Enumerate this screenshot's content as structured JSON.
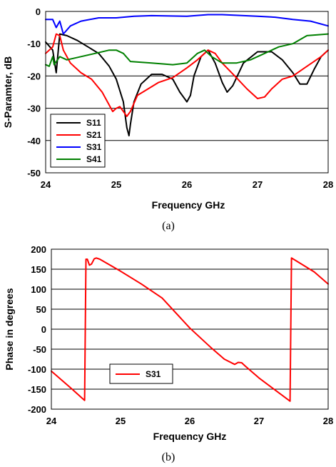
{
  "chart_data": [
    {
      "type": "line",
      "caption": "(a)",
      "xlabel": "Frequency GHz",
      "ylabel": "S-Paramter, dB",
      "xlim": [
        24,
        28
      ],
      "ylim": [
        -50,
        0
      ],
      "xticks": [
        24,
        25,
        26,
        27,
        28
      ],
      "yticks": [
        0,
        -10,
        -20,
        -30,
        -40,
        -50
      ],
      "grid": "horizontal",
      "legend_position": "bottom-left",
      "series": [
        {
          "name": "S11",
          "color": "#000000",
          "x": [
            24.0,
            24.1,
            24.15,
            24.2,
            24.3,
            24.45,
            24.6,
            24.75,
            24.9,
            25.0,
            25.1,
            25.15,
            25.18,
            25.2,
            25.25,
            25.35,
            25.5,
            25.65,
            25.8,
            25.9,
            26.0,
            26.05,
            26.1,
            26.2,
            26.3,
            26.4,
            26.5,
            26.57,
            26.65,
            26.8,
            27.0,
            27.2,
            27.35,
            27.5,
            27.6,
            27.7,
            27.8,
            27.9,
            28.0
          ],
          "y": [
            -9.5,
            -12,
            -19,
            -7,
            -7.5,
            -9,
            -11,
            -13,
            -17,
            -21,
            -28,
            -36,
            -38.5,
            -35,
            -28,
            -22.5,
            -19.5,
            -19.5,
            -21,
            -25,
            -28,
            -26,
            -20,
            -14,
            -12,
            -16,
            -22,
            -25,
            -23,
            -16,
            -12.5,
            -12.5,
            -15,
            -19,
            -22.5,
            -22.5,
            -18,
            -14,
            -12
          ]
        },
        {
          "name": "S21",
          "color": "#ff0000",
          "x": [
            24.0,
            24.1,
            24.15,
            24.2,
            24.25,
            24.35,
            24.5,
            24.65,
            24.8,
            24.9,
            24.95,
            25.0,
            25.05,
            25.1,
            25.15,
            25.2,
            25.3,
            25.45,
            25.6,
            25.8,
            26.0,
            26.15,
            26.3,
            26.4,
            26.5,
            26.7,
            26.85,
            27.0,
            27.1,
            27.2,
            27.35,
            27.5,
            27.7,
            27.9,
            28.0
          ],
          "y": [
            -13,
            -11,
            -7,
            -7.5,
            -12,
            -16,
            -19,
            -21,
            -25,
            -29,
            -31,
            -30,
            -29.5,
            -31,
            -32.5,
            -31,
            -26,
            -24,
            -22,
            -20.5,
            -17.5,
            -15,
            -12,
            -13,
            -16,
            -20.5,
            -24,
            -27,
            -26.5,
            -24,
            -21,
            -20,
            -17,
            -14,
            -12
          ]
        },
        {
          "name": "S31",
          "color": "#0000ff",
          "x": [
            24.0,
            24.1,
            24.15,
            24.2,
            24.25,
            24.35,
            24.5,
            24.75,
            25.0,
            25.25,
            25.5,
            26.0,
            26.3,
            26.5,
            27.0,
            27.25,
            27.5,
            27.75,
            28.0
          ],
          "y": [
            -2.5,
            -2.5,
            -5,
            -3,
            -7,
            -4.5,
            -3,
            -2,
            -2,
            -1.5,
            -1.3,
            -1.5,
            -1,
            -1,
            -1.5,
            -1.8,
            -2.5,
            -3,
            -4.5
          ]
        },
        {
          "name": "S41",
          "color": "#008000",
          "x": [
            24.0,
            24.05,
            24.1,
            24.12,
            24.2,
            24.3,
            24.5,
            24.7,
            24.9,
            25.0,
            25.1,
            25.2,
            25.5,
            25.8,
            26.0,
            26.15,
            26.25,
            26.35,
            26.5,
            26.7,
            26.9,
            27.1,
            27.3,
            27.5,
            27.7,
            28.0
          ],
          "y": [
            -16.5,
            -17,
            -14,
            -16.5,
            -14,
            -15,
            -14,
            -13,
            -12,
            -12,
            -13,
            -15.5,
            -16,
            -16.5,
            -16,
            -13,
            -12,
            -14,
            -16,
            -16,
            -15,
            -13,
            -11,
            -10,
            -7.5,
            -7
          ]
        }
      ]
    },
    {
      "type": "line",
      "caption": "(b)",
      "xlabel": "Frequency GHz",
      "ylabel": "Phase in degrees",
      "xlim": [
        24,
        28
      ],
      "ylim": [
        -200,
        200
      ],
      "xticks": [
        24,
        25,
        26,
        27,
        28
      ],
      "yticks": [
        200,
        150,
        100,
        50,
        0,
        -50,
        -100,
        -150,
        -200
      ],
      "grid": "horizontal",
      "legend_position": "bottom-left",
      "series": [
        {
          "name": "S31",
          "color": "#ff0000",
          "x": [
            24.0,
            24.3,
            24.48,
            24.5,
            24.52,
            24.55,
            24.58,
            24.62,
            24.65,
            24.7,
            25.0,
            25.3,
            25.6,
            26.0,
            26.3,
            26.5,
            26.65,
            26.7,
            26.75,
            26.8,
            27.0,
            27.45,
            27.47,
            27.5,
            27.8,
            28.0
          ],
          "y": [
            -105,
            -150,
            -178,
            175,
            175,
            160,
            163,
            176,
            178,
            175,
            145,
            113,
            78,
            3,
            -45,
            -75,
            -88,
            -83,
            -84,
            -92,
            -122,
            -180,
            178,
            175,
            143,
            113
          ]
        }
      ]
    }
  ]
}
